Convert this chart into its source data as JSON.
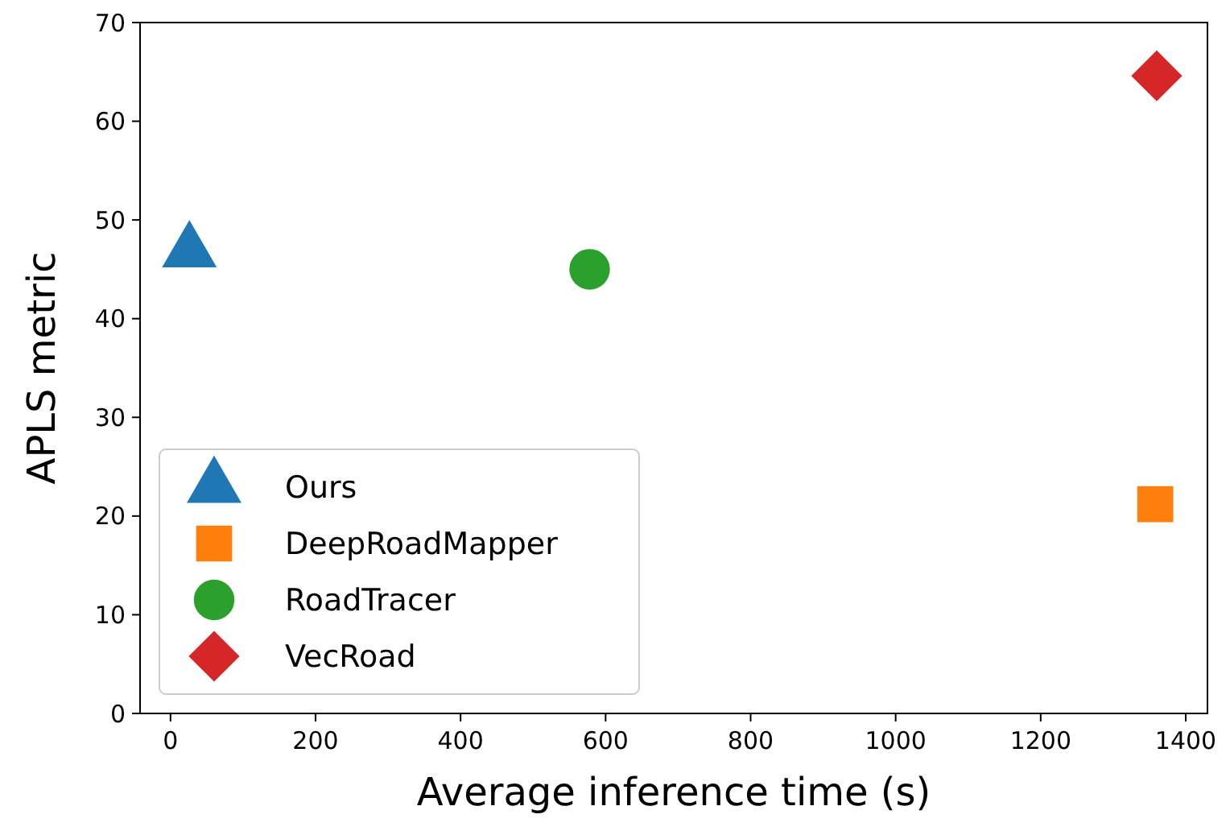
{
  "chart_data": {
    "type": "scatter",
    "xlabel": "Average inference time (s)",
    "ylabel": "APLS metric",
    "xlim": [
      -42,
      1430
    ],
    "ylim": [
      0,
      70
    ],
    "xticks": [
      0,
      200,
      400,
      600,
      800,
      1000,
      1200,
      1400
    ],
    "yticks": [
      0,
      10,
      20,
      30,
      40,
      50,
      60,
      70
    ],
    "grid": false,
    "legend": "bottom left",
    "series": [
      {
        "name": "Ours",
        "color": "#1f77b4",
        "marker": "triangle",
        "x": [
          26
        ],
        "values": [
          46.8
        ]
      },
      {
        "name": "DeepRoadMapper",
        "color": "#ff7f0e",
        "marker": "square",
        "x": [
          1358
        ],
        "values": [
          21.2
        ]
      },
      {
        "name": "RoadTracer",
        "color": "#2ca02c",
        "marker": "circle",
        "x": [
          578
        ],
        "values": [
          45.0
        ]
      },
      {
        "name": "VecRoad",
        "color": "#d62728",
        "marker": "diamond",
        "x": [
          1360
        ],
        "values": [
          64.6
        ]
      }
    ]
  }
}
